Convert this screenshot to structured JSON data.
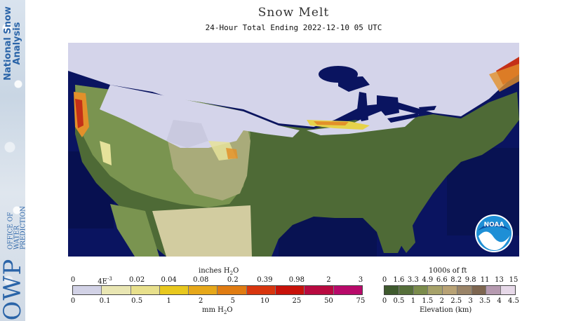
{
  "header": {
    "title": "Snow Melt",
    "subtitle": "24-Hour Total Ending 2022-12-10 05 UTC"
  },
  "sidebar": {
    "title_line1": "National Snow",
    "title_line2": "Analysis",
    "org_big": "OWP",
    "org_small_1": "OFFICE OF",
    "org_small_2": "WATER",
    "org_small_3": "PREDICTION"
  },
  "map": {
    "logo_text": "NOAA",
    "colors": {
      "water": "#0a1460",
      "nodata_water": "#071050",
      "snow": "#d4d4ea",
      "land_low": "#4e6a36",
      "land_mid": "#7a9450",
      "land_high": "#a9ab7a",
      "melt_light": "#e6e29a",
      "melt_orange": "#e2902a",
      "melt_red": "#c43018",
      "mexico_plateau": "#d2cca0"
    }
  },
  "legend_melt": {
    "title_top": "inches H",
    "title_top_sub": "2",
    "title_top_end": "O",
    "title_bottom": "mm H",
    "title_bottom_sub": "2",
    "title_bottom_end": "O",
    "top_ticks": [
      "0",
      "4E",
      "0.02",
      "0.04",
      "0.08",
      "0.2",
      "0.39",
      "0.98",
      "2",
      "3"
    ],
    "top_tick_sup": "-3",
    "bottom_ticks": [
      "0",
      "0.1",
      "0.5",
      "1",
      "2",
      "5",
      "10",
      "25",
      "50",
      "75"
    ],
    "colors": [
      "#d2d2e6",
      "#e9e6b3",
      "#e8e08c",
      "#e8c81e",
      "#e6a81a",
      "#e07c12",
      "#d8360e",
      "#c8120a",
      "#b80a40",
      "#b80a6a"
    ]
  },
  "legend_elev": {
    "title_top": "1000s of ft",
    "title_bottom": "Elevation (km)",
    "top_ticks": [
      "0",
      "1.6",
      "3.3",
      "4.9",
      "6.6",
      "8.2",
      "9.8",
      "11",
      "13",
      "15"
    ],
    "bottom_ticks": [
      "0",
      "0.5",
      "1",
      "1.5",
      "2",
      "2.5",
      "3",
      "3.5",
      "4",
      "4.5"
    ],
    "colors": [
      "#3f5a2e",
      "#566f3a",
      "#7b8c4c",
      "#a7a26a",
      "#b8a275",
      "#9a8468",
      "#7e6650",
      "#b69ab0",
      "#e6d8e8"
    ]
  }
}
